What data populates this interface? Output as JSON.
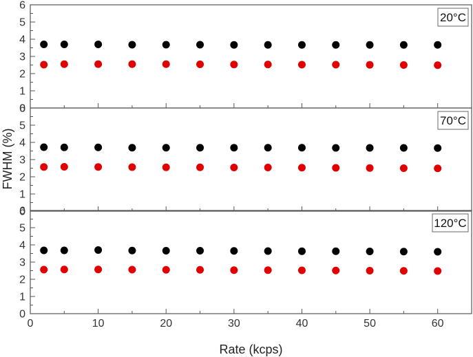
{
  "chart_data": {
    "type": "scatter",
    "xlabel": "Rate (kcps)",
    "ylabel": "FWHM (%)",
    "xlim": [
      0,
      65
    ],
    "ylim": [
      0,
      6
    ],
    "x_ticks": [
      "0",
      "10",
      "20",
      "30",
      "40",
      "50",
      "60"
    ],
    "y_ticks": [
      "0",
      "1",
      "2",
      "3",
      "4",
      "5",
      "6"
    ],
    "grid": false,
    "colors": {
      "series_black": "#000000",
      "series_red": "#e00000"
    },
    "panels": [
      {
        "label": "20°C",
        "x": [
          2,
          5,
          10,
          15,
          20,
          25,
          30,
          35,
          40,
          45,
          50,
          55,
          60
        ],
        "series": [
          {
            "values": [
              3.7,
              3.7,
              3.7,
              3.68,
              3.68,
              3.68,
              3.67,
              3.67,
              3.67,
              3.67,
              3.67,
              3.67,
              3.67
            ]
          },
          {
            "values": [
              2.52,
              2.55,
              2.55,
              2.55,
              2.55,
              2.54,
              2.53,
              2.53,
              2.52,
              2.52,
              2.51,
              2.5,
              2.49
            ]
          }
        ]
      },
      {
        "label": "70°C",
        "x": [
          2,
          5,
          10,
          15,
          20,
          25,
          30,
          35,
          40,
          45,
          50,
          55,
          60
        ],
        "series": [
          {
            "values": [
              3.72,
              3.71,
              3.71,
              3.69,
              3.69,
              3.69,
              3.69,
              3.69,
              3.69,
              3.68,
              3.68,
              3.68,
              3.67
            ]
          },
          {
            "values": [
              2.57,
              2.58,
              2.57,
              2.56,
              2.55,
              2.55,
              2.54,
              2.54,
              2.53,
              2.52,
              2.51,
              2.5,
              2.49
            ]
          }
        ]
      },
      {
        "label": "120°C",
        "x": [
          2,
          5,
          10,
          15,
          20,
          25,
          30,
          35,
          40,
          45,
          50,
          55,
          60
        ],
        "series": [
          {
            "values": [
              3.68,
              3.68,
              3.7,
              3.67,
              3.66,
              3.66,
              3.65,
              3.64,
              3.63,
              3.63,
              3.62,
              3.61,
              3.6
            ]
          },
          {
            "values": [
              2.56,
              2.57,
              2.57,
              2.56,
              2.55,
              2.55,
              2.53,
              2.53,
              2.52,
              2.51,
              2.5,
              2.49,
              2.48
            ]
          }
        ]
      }
    ]
  }
}
